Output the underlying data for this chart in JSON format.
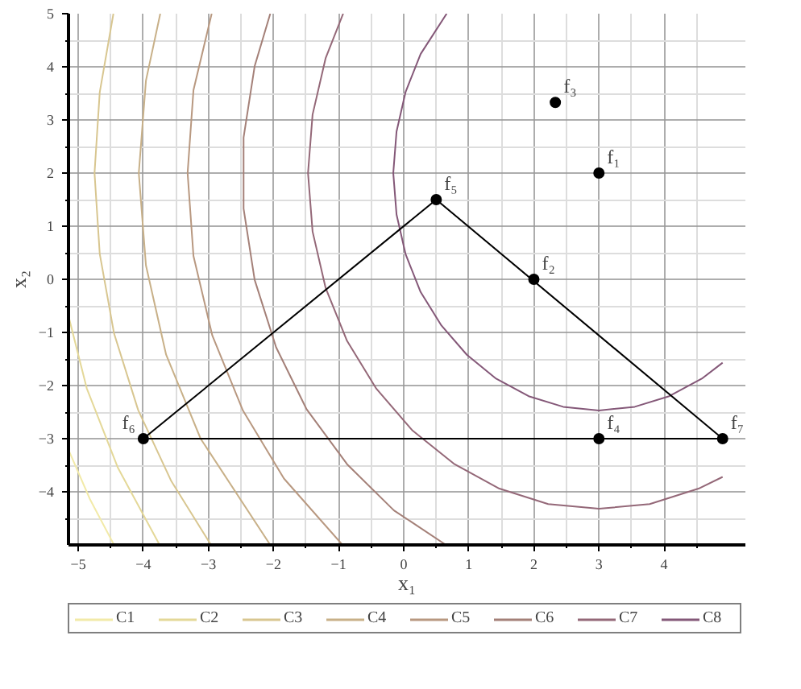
{
  "chart_data": {
    "type": "line",
    "xlabel": "x₁",
    "ylabel": "x₂",
    "xlim": [
      -5.15,
      5.25
    ],
    "ylim": [
      -5,
      5
    ],
    "xticks": [
      -5,
      -4,
      -3,
      -2,
      -1,
      0,
      1,
      2,
      3,
      4
    ],
    "yticks": [
      -4,
      -3,
      -2,
      -1,
      0,
      1,
      2,
      3,
      4,
      5
    ],
    "grid": true,
    "legend": "bottom",
    "marker": "none",
    "line_style": "solid",
    "series": [
      {
        "name": "C1",
        "color": "#f2eaa8",
        "x": [
          -5.15,
          -4.82,
          -4.45
        ],
        "values": [
          -3.21,
          -4.14,
          -5.0
        ]
      },
      {
        "name": "C2",
        "color": "#e4d898",
        "x": [
          -5.15,
          -4.87,
          -4.39,
          -3.75
        ],
        "values": [
          -0.69,
          -2.05,
          -3.55,
          -5.0
        ]
      },
      {
        "name": "C3",
        "color": "#d8c690",
        "x": [
          -4.46,
          -4.67,
          -4.75,
          -4.67,
          -4.45,
          -4.08,
          -3.57,
          -2.96
        ],
        "values": [
          5.0,
          3.52,
          2,
          0.48,
          -1.02,
          -2.46,
          -3.8,
          -5.0
        ]
      },
      {
        "name": "C4",
        "color": "#c8b088",
        "x": [
          -3.74,
          -3.96,
          -4.07,
          -3.96,
          -3.65,
          -3.12,
          -2.05
        ],
        "values": [
          5.0,
          3.74,
          2,
          0.26,
          -1.42,
          -3.0,
          -5.0
        ]
      },
      {
        "name": "C5",
        "color": "#b89880",
        "x": [
          -2.95,
          -3.23,
          -3.32,
          -3.23,
          -2.94,
          -2.47,
          -1.84,
          -0.94
        ],
        "values": [
          5.0,
          3.56,
          2,
          0.44,
          -1.06,
          -2.47,
          -3.75,
          -5.0
        ]
      },
      {
        "name": "C6",
        "color": "#a48078",
        "x": [
          -2.05,
          -2.29,
          -2.46,
          -2.46,
          -2.29,
          -1.96,
          -1.49,
          -0.87,
          -0.15,
          0.65
        ],
        "values": [
          5.0,
          4.01,
          2.67,
          1.33,
          -0.01,
          -1.28,
          -2.45,
          -3.48,
          -4.35,
          -5.0
        ]
      },
      {
        "name": "C7",
        "color": "#946878",
        "x": [
          -0.93,
          -1.2,
          -1.4,
          -1.47,
          -1.4,
          -1.2,
          -0.87,
          -0.42,
          0.13,
          0.77,
          1.47,
          2.22,
          3,
          3.78,
          4.53,
          4.9
        ],
        "values": [
          5.0,
          4.16,
          3.1,
          2,
          0.9,
          -0.16,
          -1.16,
          -2.06,
          -2.84,
          -3.47,
          -3.94,
          -4.23,
          -4.32,
          -4.23,
          -3.94,
          -3.72
        ]
      },
      {
        "name": "C8",
        "color": "#845878",
        "x": [
          0.66,
          0.26,
          0.03,
          -0.11,
          -0.16,
          -0.11,
          0.03,
          0.26,
          0.58,
          0.97,
          1.42,
          1.92,
          2.45,
          3,
          3.55,
          4.08,
          4.58,
          4.9
        ],
        "values": [
          5.0,
          4.24,
          3.53,
          2.78,
          2,
          1.22,
          0.47,
          -0.24,
          -0.87,
          -1.42,
          -1.87,
          -2.2,
          -2.4,
          -2.47,
          -2.4,
          -2.2,
          -1.87,
          -1.57
        ]
      },
      {
        "color": "#000000",
        "x": [
          -4,
          0.5,
          4.9
        ],
        "values": [
          -3,
          1.5,
          -3
        ]
      },
      {
        "color": "#000000",
        "x": [
          -4,
          4.9
        ],
        "values": [
          -3,
          -3
        ]
      },
      {
        "type": "scatter",
        "color": "#000000",
        "marker": "circle",
        "x": [
          3,
          2,
          2.33,
          3,
          0.5,
          -4,
          4.9
        ],
        "values": [
          2,
          0,
          3.33,
          -3,
          1.5,
          -3,
          -3
        ]
      }
    ],
    "annotations": [
      {
        "text": "f₁",
        "x": 3,
        "y": 2
      },
      {
        "text": "f₂",
        "x": 2,
        "y": 0
      },
      {
        "text": "f₃",
        "x": 2.33,
        "y": 3.33
      },
      {
        "text": "f₄",
        "x": 3,
        "y": -3
      },
      {
        "text": "f₅",
        "x": 0.5,
        "y": 1.5
      },
      {
        "text": "f₆",
        "x": -4,
        "y": -3
      },
      {
        "text": "f₇",
        "x": 4.9,
        "y": -3
      }
    ]
  }
}
